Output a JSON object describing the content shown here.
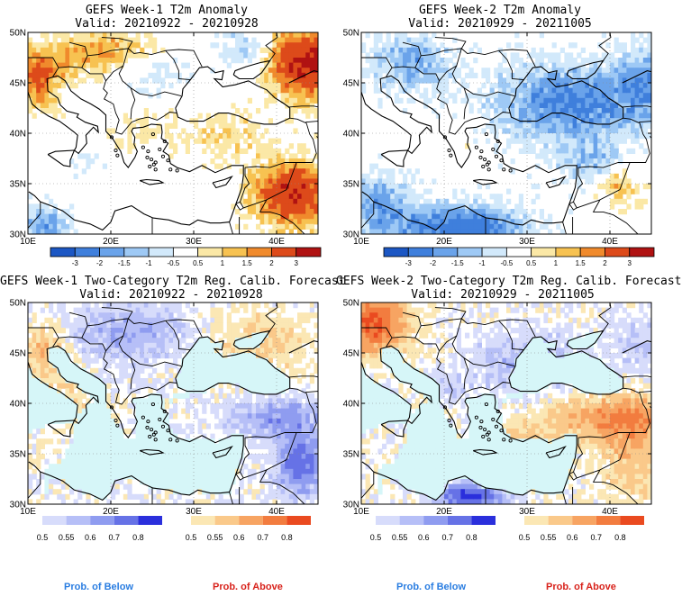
{
  "panels": [
    {
      "title": "GEFS Week-1 T2m Anomaly",
      "valid": "Valid: 20210922 - 20210928",
      "kind": "anom",
      "variant": 1
    },
    {
      "title": "GEFS Week-2 T2m Anomaly",
      "valid": "Valid: 20210929 - 20211005",
      "kind": "anom",
      "variant": 2
    },
    {
      "title": "GEFS Week-1 Two-Category T2m Reg. Calib. Forecast",
      "valid": "Valid: 20210922 - 20210928",
      "kind": "prob",
      "variant": 1
    },
    {
      "title": "GEFS Week-2 Two-Category T2m Reg. Calib. Forecast",
      "valid": "Valid: 20210929 - 20211005",
      "kind": "prob",
      "variant": 2
    }
  ],
  "axes": {
    "lon_ticks": [
      "10E",
      "20E",
      "30E",
      "40E"
    ],
    "lat_ticks": [
      "50N",
      "45N",
      "40N",
      "35N",
      "30N"
    ]
  },
  "anomaly_colorbar": {
    "labels": [
      "-3",
      "-2",
      "-1.5",
      "-1",
      "-0.5",
      "0.5",
      "1",
      "1.5",
      "2",
      "3"
    ],
    "colors": [
      "#1c57c4",
      "#3f7fdc",
      "#6aa3ea",
      "#9ec9f5",
      "#d2e9fb",
      "#ffffff",
      "#fbe8a6",
      "#f7c251",
      "#f08a2c",
      "#dd4a1a",
      "#b01212"
    ]
  },
  "below_colorbar": {
    "labels": [
      "0.5",
      "0.55",
      "0.6",
      "0.7",
      "0.8"
    ],
    "colors": [
      "#d7dcfb",
      "#b6bff7",
      "#8f9cf0",
      "#6672e6",
      "#2a2fdc"
    ]
  },
  "above_colorbar": {
    "labels": [
      "0.5",
      "0.55",
      "0.6",
      "0.7",
      "0.8"
    ],
    "colors": [
      "#fbe7b4",
      "#fac98a",
      "#f7a462",
      "#f27c3f",
      "#ea4a20"
    ]
  },
  "footer": {
    "below_label": "Prob. of Below",
    "above_label": "Prob. of Above",
    "below_color": "#2a7de1",
    "above_color": "#d8221b"
  },
  "colors": {
    "sea_prob": "#d6f6f8",
    "land_neutral": "#ffffff"
  }
}
